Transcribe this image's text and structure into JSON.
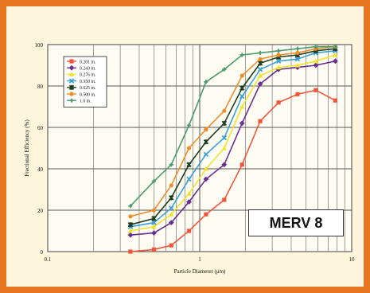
{
  "badge": {
    "label": "MERV 8"
  },
  "chart_data": {
    "type": "line",
    "xlabel": "Particle Diameter (μm)",
    "ylabel": "Fractional Efficiency (%)",
    "xscale": "log",
    "xlim": [
      0.1,
      10
    ],
    "ylim": [
      0,
      100
    ],
    "x_ticks": [
      {
        "v": 0.1,
        "label": "0.1"
      },
      {
        "v": 1,
        "label": "1"
      },
      {
        "v": 10,
        "label": "10"
      }
    ],
    "y_ticks": [
      {
        "v": 0,
        "label": "0"
      },
      {
        "v": 20,
        "label": "20"
      },
      {
        "v": 40,
        "label": "40"
      },
      {
        "v": 60,
        "label": "60"
      },
      {
        "v": 80,
        "label": "80"
      },
      {
        "v": 100,
        "label": "100"
      }
    ],
    "grid": true,
    "legend": "top-left",
    "x": [
      0.35,
      0.5,
      0.65,
      0.85,
      1.1,
      1.45,
      1.9,
      2.5,
      3.3,
      4.4,
      5.8,
      7.8
    ],
    "series": [
      {
        "name": "0.201 in.",
        "color": "#f0553a",
        "marker": "square",
        "values": [
          0,
          1,
          3,
          10,
          18,
          25,
          42,
          63,
          72,
          76,
          78,
          73
        ]
      },
      {
        "name": "0.243 in.",
        "color": "#6a2f8f",
        "marker": "diamond",
        "values": [
          8,
          9,
          14,
          24,
          35,
          42,
          62,
          81,
          88,
          89,
          90,
          92
        ]
      },
      {
        "name": "0.276 in.",
        "color": "#f2e22e",
        "marker": "triangle",
        "values": [
          10,
          12,
          18,
          28,
          40,
          50,
          70,
          85,
          89,
          90,
          92,
          95
        ]
      },
      {
        "name": "0.350 in.",
        "color": "#3aa0d8",
        "marker": "x",
        "values": [
          12,
          14,
          21,
          35,
          47,
          55,
          75,
          88,
          92,
          93,
          96,
          97
        ]
      },
      {
        "name": "0.625 in.",
        "color": "#1e3d20",
        "marker": "star",
        "values": [
          13,
          16,
          26,
          42,
          53,
          62,
          79,
          91,
          94,
          95,
          97,
          98
        ]
      },
      {
        "name": "0.500 in.",
        "color": "#f08d2a",
        "marker": "circle",
        "values": [
          17,
          20,
          32,
          50,
          59,
          68,
          85,
          93,
          95,
          96,
          98,
          99
        ]
      },
      {
        "name": "1.0 in.",
        "color": "#4a9a72",
        "marker": "plus",
        "values": [
          22,
          34,
          42,
          61,
          82,
          88,
          95,
          96,
          97,
          98,
          99,
          99
        ]
      }
    ]
  }
}
